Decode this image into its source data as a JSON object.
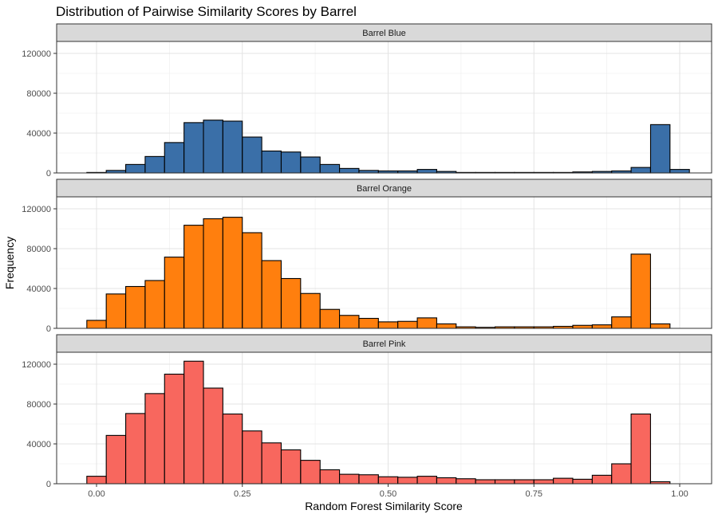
{
  "chart_data": {
    "type": "bar",
    "title": "Distribution of Pairwise Similarity Scores by Barrel",
    "xlabel": "Random Forest Similarity Score",
    "ylabel": "Frequency",
    "xlim": [
      -0.017,
      1.017
    ],
    "ylim": [
      0,
      132000
    ],
    "xticks": [
      0,
      0.25,
      0.5,
      0.75,
      1.0
    ],
    "xtick_labels": [
      "0.00",
      "0.25",
      "0.50",
      "0.75",
      "1.00"
    ],
    "yticks": [
      0,
      40000,
      80000,
      120000
    ],
    "ytick_labels": [
      "0",
      "40000",
      "80000",
      "120000"
    ],
    "bin_centers": [
      0.0,
      0.0333,
      0.0667,
      0.1,
      0.1333,
      0.1667,
      0.2,
      0.2333,
      0.2667,
      0.3,
      0.3333,
      0.3667,
      0.4,
      0.4333,
      0.4667,
      0.5,
      0.5333,
      0.5667,
      0.6,
      0.6333,
      0.6667,
      0.7,
      0.7333,
      0.7667,
      0.8,
      0.8333,
      0.8667,
      0.9,
      0.9333,
      0.9667,
      1.0
    ],
    "grid": true,
    "series": [
      {
        "name": "Barrel Blue",
        "color": "#3A6FA8",
        "values": [
          500,
          2500,
          8500,
          16500,
          30500,
          50500,
          53000,
          52000,
          36000,
          22000,
          21000,
          16000,
          8500,
          4500,
          2500,
          2000,
          2000,
          3500,
          1500,
          500,
          500,
          500,
          500,
          500,
          500,
          1000,
          1500,
          2000,
          5500,
          48500,
          3500
        ]
      },
      {
        "name": "Barrel Orange",
        "color": "#FF7F0E",
        "values": [
          8000,
          34500,
          42000,
          48000,
          71500,
          103500,
          110000,
          111500,
          96000,
          68000,
          50000,
          35000,
          19000,
          13000,
          10000,
          6500,
          7000,
          10500,
          4500,
          1500,
          1000,
          1500,
          1500,
          1500,
          2000,
          3000,
          3500,
          11500,
          74500,
          4500,
          0
        ]
      },
      {
        "name": "Barrel Pink",
        "color": "#F8675E",
        "values": [
          7500,
          48500,
          70500,
          90500,
          110000,
          123000,
          96000,
          70000,
          53000,
          41000,
          34000,
          23500,
          14000,
          9500,
          9000,
          7000,
          6500,
          7500,
          6000,
          5000,
          4000,
          4000,
          4000,
          4000,
          5500,
          4500,
          8500,
          20000,
          70000,
          2000,
          0
        ]
      }
    ]
  }
}
